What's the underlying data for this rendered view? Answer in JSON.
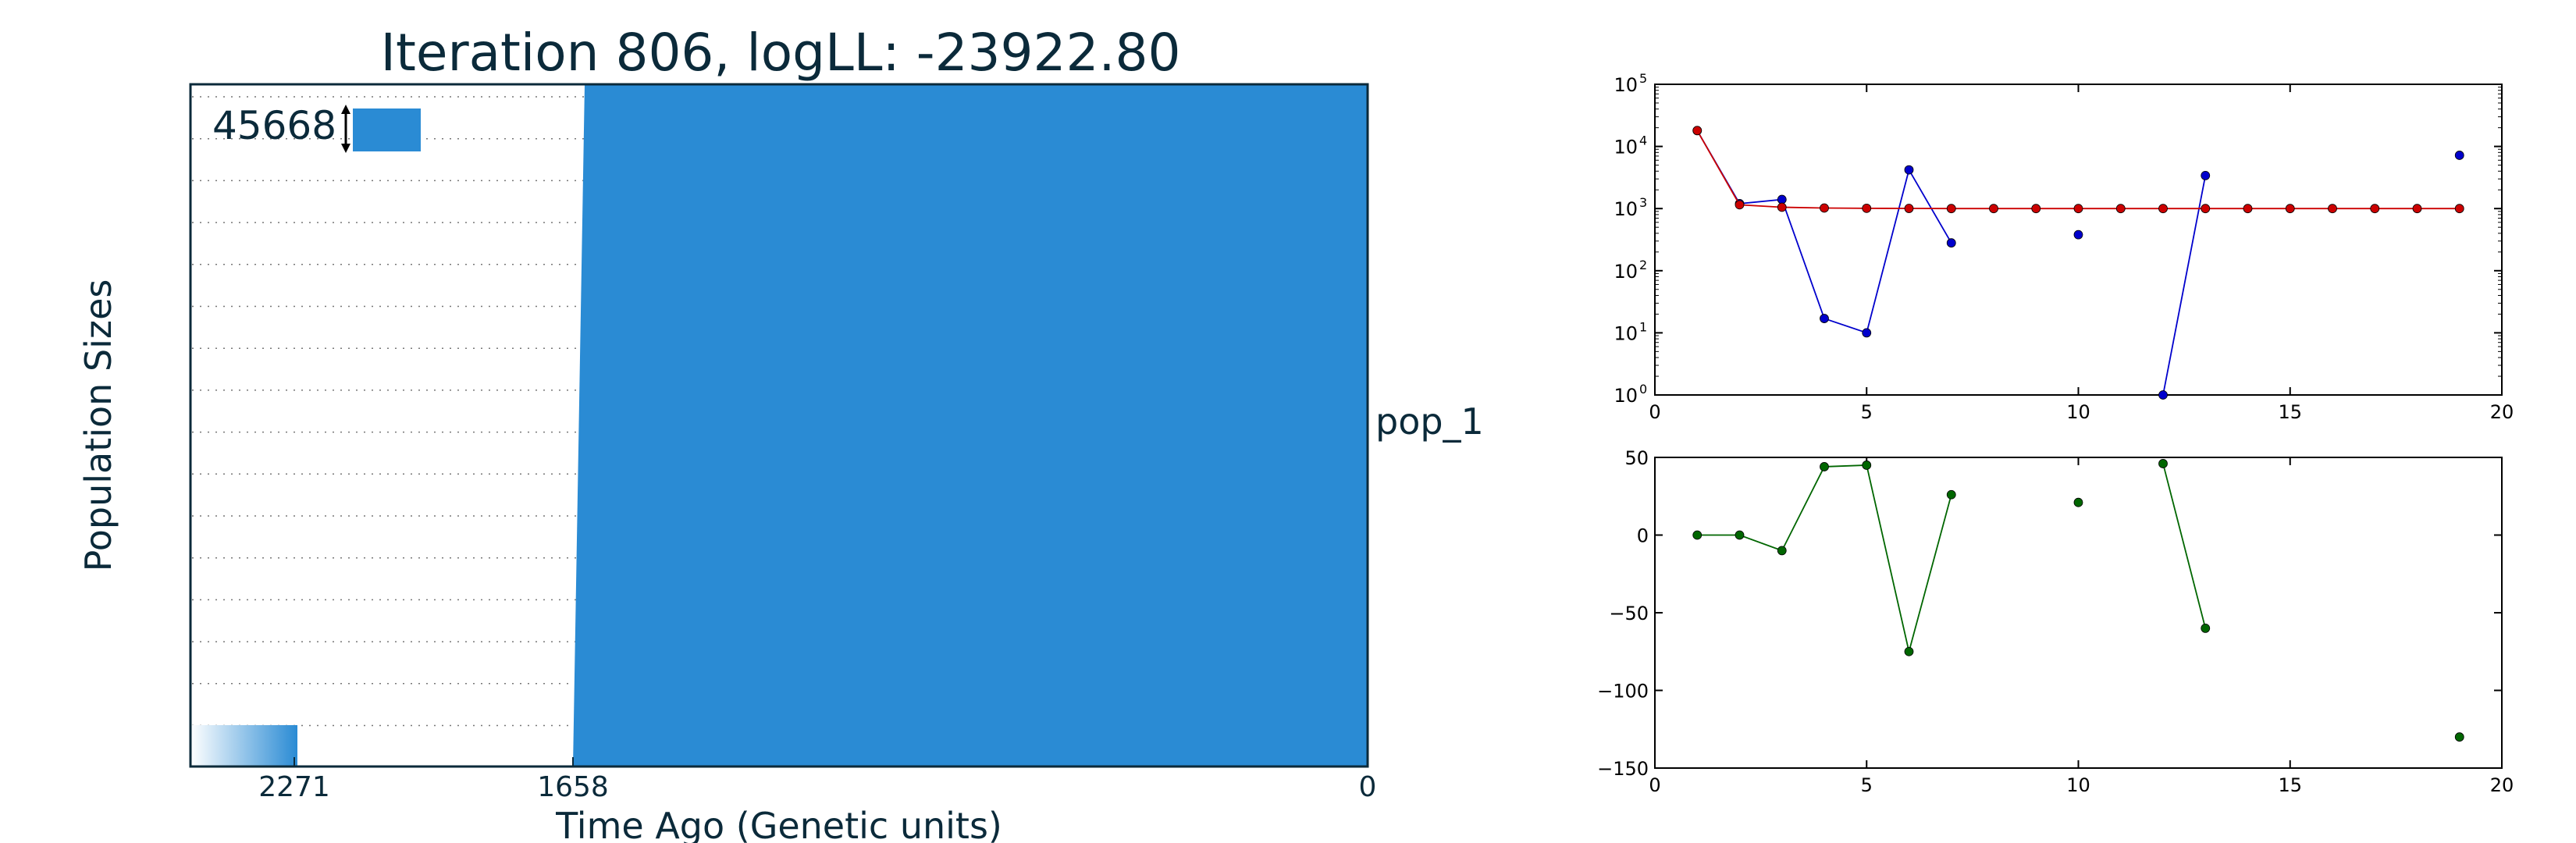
{
  "colors": {
    "fill": "#2a8bd4",
    "text": "#0b2a3a",
    "blue_series": "#0000cc",
    "red_series": "#cc0000",
    "green_series": "#006600"
  },
  "chart_data": [
    {
      "type": "area",
      "title": "Iteration 806, logLL:  -23922.80",
      "xlabel": "Time Ago (Genetic units)",
      "ylabel": "Population Sizes",
      "x_ticks": [
        "2271",
        "1658",
        "0"
      ],
      "series_label": "pop_1",
      "scale_bar_label": "45668",
      "grid": "horizontal dotted",
      "region": {
        "x_start": 1658,
        "x_end": 0
      }
    },
    {
      "type": "line",
      "yscale": "log",
      "xlim": [
        0,
        20
      ],
      "ylim": [
        1,
        100000
      ],
      "x_ticks": [
        "0",
        "5",
        "10",
        "15",
        "20"
      ],
      "y_tick_bases": [
        "10",
        "10",
        "10",
        "10",
        "10",
        "10"
      ],
      "y_tick_exponents": [
        "0",
        "1",
        "2",
        "3",
        "4",
        "5"
      ],
      "series": [
        {
          "color": "blue",
          "points": [
            [
              1,
              18000
            ],
            [
              2,
              1200
            ],
            [
              3,
              1400
            ],
            [
              4,
              17
            ],
            [
              5,
              10
            ],
            [
              6,
              4200
            ],
            [
              7,
              280
            ],
            [
              10,
              380
            ],
            [
              12,
              1
            ],
            [
              13,
              3400
            ],
            [
              19,
              7200
            ]
          ],
          "segments": [
            [
              0,
              6
            ],
            [
              8,
              9
            ]
          ]
        },
        {
          "color": "red",
          "points": [
            [
              1,
              18000
            ],
            [
              2,
              1150
            ],
            [
              3,
              1050
            ],
            [
              4,
              1020
            ],
            [
              5,
              1010
            ],
            [
              6,
              1005
            ],
            [
              7,
              1000
            ],
            [
              8,
              1000
            ],
            [
              9,
              1000
            ],
            [
              10,
              1000
            ],
            [
              11,
              1000
            ],
            [
              12,
              1000
            ],
            [
              13,
              1000
            ],
            [
              14,
              1000
            ],
            [
              15,
              1000
            ],
            [
              16,
              1000
            ],
            [
              17,
              1000
            ],
            [
              18,
              1000
            ],
            [
              19,
              1000
            ]
          ],
          "segments": [
            [
              0,
              18
            ]
          ]
        }
      ]
    },
    {
      "type": "line",
      "xlim": [
        0,
        20
      ],
      "ylim": [
        -150,
        50
      ],
      "x_ticks": [
        "0",
        "5",
        "10",
        "15",
        "20"
      ],
      "y_ticks": [
        "50",
        "0",
        "−50",
        "−100",
        "−150"
      ],
      "y_tick_values": [
        50,
        0,
        -50,
        -100,
        -150
      ],
      "series": [
        {
          "color": "green",
          "points": [
            [
              1,
              0
            ],
            [
              2,
              0
            ],
            [
              3,
              -10
            ],
            [
              4,
              44
            ],
            [
              5,
              45
            ],
            [
              6,
              -75
            ],
            [
              7,
              26
            ],
            [
              10,
              21
            ],
            [
              12,
              46
            ],
            [
              13,
              -60
            ],
            [
              19,
              -130
            ]
          ],
          "segments": [
            [
              0,
              6
            ],
            [
              8,
              9
            ]
          ]
        }
      ]
    }
  ]
}
